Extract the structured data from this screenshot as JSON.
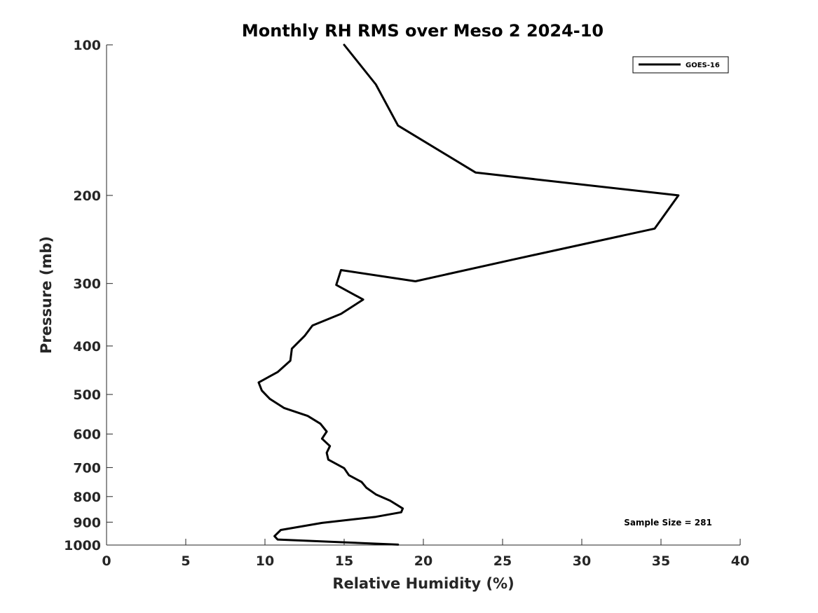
{
  "chart_data": {
    "type": "line",
    "title": "Monthly RH RMS over Meso 2  2024-10",
    "xlabel": "Relative Humidity (%)",
    "ylabel": "Pressure (mb)",
    "xlim": [
      0,
      40
    ],
    "ylim": [
      100,
      1000
    ],
    "yscale": "log",
    "y_reversed": true,
    "xticks": [
      0,
      5,
      10,
      15,
      20,
      25,
      30,
      35,
      40
    ],
    "yticks": [
      100,
      200,
      300,
      400,
      500,
      600,
      700,
      800,
      900,
      1000
    ],
    "legend": {
      "position": "top-right",
      "entries": [
        "GOES-16"
      ]
    },
    "annotation": "Sample Size = 281",
    "series": [
      {
        "name": "GOES-16",
        "color": "#000000",
        "x": [
          15.0,
          17.0,
          18.4,
          23.3,
          36.1,
          34.6,
          25.6,
          19.5,
          14.8,
          14.5,
          16.2,
          14.8,
          13.0,
          12.5,
          11.7,
          11.6,
          10.8,
          9.6,
          9.8,
          10.3,
          11.2,
          12.7,
          13.5,
          13.9,
          13.6,
          14.1,
          13.9,
          14.0,
          15.0,
          15.3,
          16.1,
          16.4,
          17.0,
          17.9,
          18.7,
          18.6,
          17.0,
          13.6,
          11.0,
          10.6,
          10.8,
          18.4
        ],
        "y": [
          100,
          120,
          145,
          180,
          200,
          233,
          269,
          297,
          282,
          302,
          323,
          345,
          364,
          382,
          405,
          428,
          451,
          473,
          491,
          510,
          532,
          552,
          572,
          593,
          613,
          634,
          654,
          675,
          702,
          725,
          748,
          768,
          792,
          815,
          845,
          860,
          878,
          903,
          933,
          960,
          975,
          998
        ]
      }
    ]
  }
}
